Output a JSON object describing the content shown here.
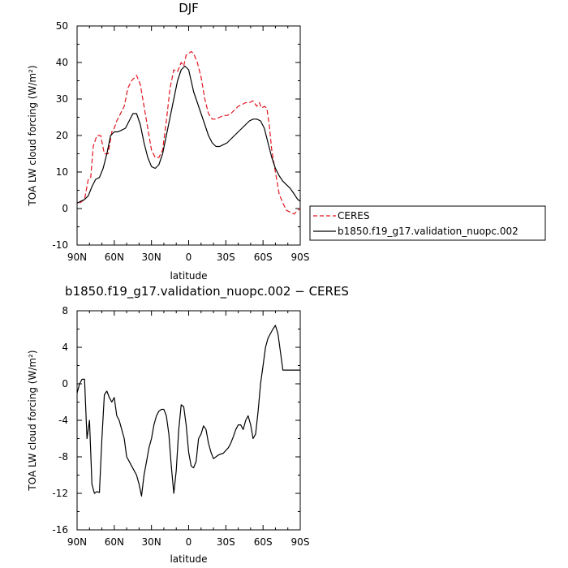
{
  "chart_data": [
    {
      "type": "line",
      "title": "DJF",
      "xlabel": "latitude",
      "ylabel": "TOA LW cloud forcing (W/m²)",
      "xlim": [
        -90,
        90
      ],
      "ylim": [
        -10,
        50
      ],
      "x_ticks": [
        {
          "value": -90,
          "label": "90N"
        },
        {
          "value": -60,
          "label": "60N"
        },
        {
          "value": -30,
          "label": "30N"
        },
        {
          "value": 0,
          "label": "0"
        },
        {
          "value": 30,
          "label": "30S"
        },
        {
          "value": 60,
          "label": "60S"
        },
        {
          "value": 90,
          "label": "90S"
        }
      ],
      "y_ticks": [
        -10,
        0,
        10,
        20,
        30,
        40,
        50
      ],
      "legend": "right",
      "series": [
        {
          "name": "CERES",
          "color": "#e0141e",
          "dash": "dashed",
          "x": [
            -88,
            -84,
            -81,
            -79,
            -77,
            -74,
            -71,
            -68,
            -65,
            -62,
            -60,
            -58,
            -55,
            -52,
            -49,
            -46,
            -42,
            -39,
            -36,
            -33,
            -30,
            -27,
            -24,
            -21,
            -18,
            -15,
            -12,
            -9,
            -6,
            -4,
            -2,
            0,
            2,
            4,
            7,
            10,
            13,
            16,
            19,
            22,
            25,
            28,
            31,
            34,
            37,
            40,
            43,
            46,
            49,
            52,
            55,
            57,
            59,
            61,
            63,
            65,
            67,
            70,
            73,
            76,
            79,
            82,
            85,
            88,
            90
          ],
          "y": [
            1.5,
            2.5,
            8,
            8.5,
            17,
            20,
            20,
            15,
            15,
            21,
            22,
            24,
            26,
            28,
            33,
            35,
            36.5,
            34,
            28,
            22,
            16,
            14,
            14,
            16,
            24,
            33,
            38,
            37.5,
            40,
            39,
            42,
            42.5,
            43,
            42.5,
            40,
            36,
            30,
            26,
            24.5,
            24.5,
            25,
            25.5,
            25.5,
            26,
            27,
            28,
            28.5,
            29,
            29,
            29.5,
            28,
            29,
            27.5,
            28,
            27.5,
            23,
            16,
            10,
            4,
            1.5,
            -0.5,
            -1,
            -1.5,
            -0.5,
            0
          ]
        },
        {
          "name": "b1850.f19_g17.validation_nuopc.002",
          "color": "#000000",
          "dash": "solid",
          "x": [
            -90,
            -87,
            -84,
            -81,
            -78,
            -75,
            -72,
            -69,
            -66,
            -63,
            -60,
            -57,
            -54,
            -51,
            -48,
            -45,
            -42,
            -39,
            -36,
            -33,
            -30,
            -27,
            -24,
            -21,
            -18,
            -15,
            -12,
            -9,
            -6,
            -3,
            0,
            2,
            4,
            7,
            10,
            13,
            16,
            19,
            22,
            25,
            28,
            31,
            34,
            37,
            40,
            43,
            46,
            49,
            52,
            55,
            58,
            61,
            64,
            67,
            70,
            73,
            76,
            79,
            82,
            85,
            88,
            90
          ],
          "y": [
            1.5,
            2,
            2.5,
            3.5,
            6,
            8,
            8.5,
            11,
            15,
            20,
            21,
            21,
            21.5,
            22,
            24,
            26,
            26,
            23,
            18,
            14,
            11.5,
            11,
            12,
            15,
            20,
            25,
            30,
            35,
            38,
            39,
            38,
            35,
            32,
            29,
            26,
            23,
            20,
            18,
            17,
            17,
            17.5,
            18,
            19,
            20,
            21,
            22,
            23,
            24,
            24.5,
            24.5,
            24,
            22,
            18,
            14,
            11,
            9,
            7.5,
            6.5,
            5.5,
            4,
            2.5,
            2
          ]
        }
      ]
    },
    {
      "type": "line",
      "title": "b1850.f19_g17.validation_nuopc.002 − CERES",
      "xlabel": "latitude",
      "ylabel": "TOA LW cloud forcing (W/m²)",
      "xlim": [
        -90,
        90
      ],
      "ylim": [
        -16,
        8
      ],
      "x_ticks": [
        {
          "value": -90,
          "label": "90N"
        },
        {
          "value": -60,
          "label": "60N"
        },
        {
          "value": -30,
          "label": "30N"
        },
        {
          "value": 0,
          "label": "0"
        },
        {
          "value": 30,
          "label": "30S"
        },
        {
          "value": 60,
          "label": "60S"
        },
        {
          "value": 90,
          "label": "90S"
        }
      ],
      "y_ticks": [
        -16,
        -12,
        -8,
        -4,
        0,
        4,
        8
      ],
      "series": [
        {
          "name": "",
          "color": "#000000",
          "dash": "solid",
          "x": [
            -90,
            -88,
            -86,
            -84,
            -82,
            -80,
            -78,
            -76,
            -74,
            -72,
            -70,
            -68,
            -66,
            -64,
            -62,
            -60,
            -58,
            -56,
            -54,
            -52,
            -50,
            -48,
            -46,
            -44,
            -42,
            -40,
            -38,
            -36,
            -34,
            -32,
            -30,
            -28,
            -26,
            -24,
            -22,
            -20,
            -18,
            -16,
            -14,
            -12,
            -10,
            -8,
            -6,
            -4,
            -2,
            0,
            2,
            4,
            6,
            8,
            10,
            12,
            14,
            16,
            18,
            20,
            22,
            24,
            26,
            28,
            30,
            32,
            34,
            36,
            38,
            40,
            42,
            44,
            46,
            48,
            50,
            52,
            54,
            56,
            58,
            60,
            62,
            64,
            66,
            68,
            70,
            72,
            74,
            76,
            78,
            80,
            82,
            84,
            86,
            88,
            90
          ],
          "y": [
            -1,
            0,
            0.5,
            0.5,
            -6,
            -4,
            -11,
            -12,
            -11.8,
            -11.9,
            -6,
            -1.2,
            -0.8,
            -1.5,
            -2,
            -1.5,
            -3.5,
            -4,
            -5,
            -6,
            -8,
            -8.5,
            -9,
            -9.5,
            -10,
            -11,
            -12.3,
            -10,
            -8.5,
            -7,
            -6,
            -4.5,
            -3.5,
            -3,
            -2.8,
            -2.8,
            -3.5,
            -5.5,
            -9,
            -12,
            -9.5,
            -5,
            -2.3,
            -2.5,
            -4.5,
            -7.5,
            -9,
            -9.2,
            -8.5,
            -6,
            -5.5,
            -4.6,
            -5,
            -6.5,
            -7.5,
            -8.2,
            -8,
            -7.8,
            -7.7,
            -7.6,
            -7.3,
            -7,
            -6.5,
            -5.8,
            -5,
            -4.5,
            -4.5,
            -5,
            -4,
            -3.5,
            -4.5,
            -6,
            -5.5,
            -3,
            0,
            2,
            4,
            5,
            5.5,
            6,
            6.4,
            5.5,
            3.5,
            1.5,
            1.5,
            1.5,
            1.5,
            1.5,
            1.5,
            1.5,
            1.5
          ]
        }
      ]
    }
  ]
}
